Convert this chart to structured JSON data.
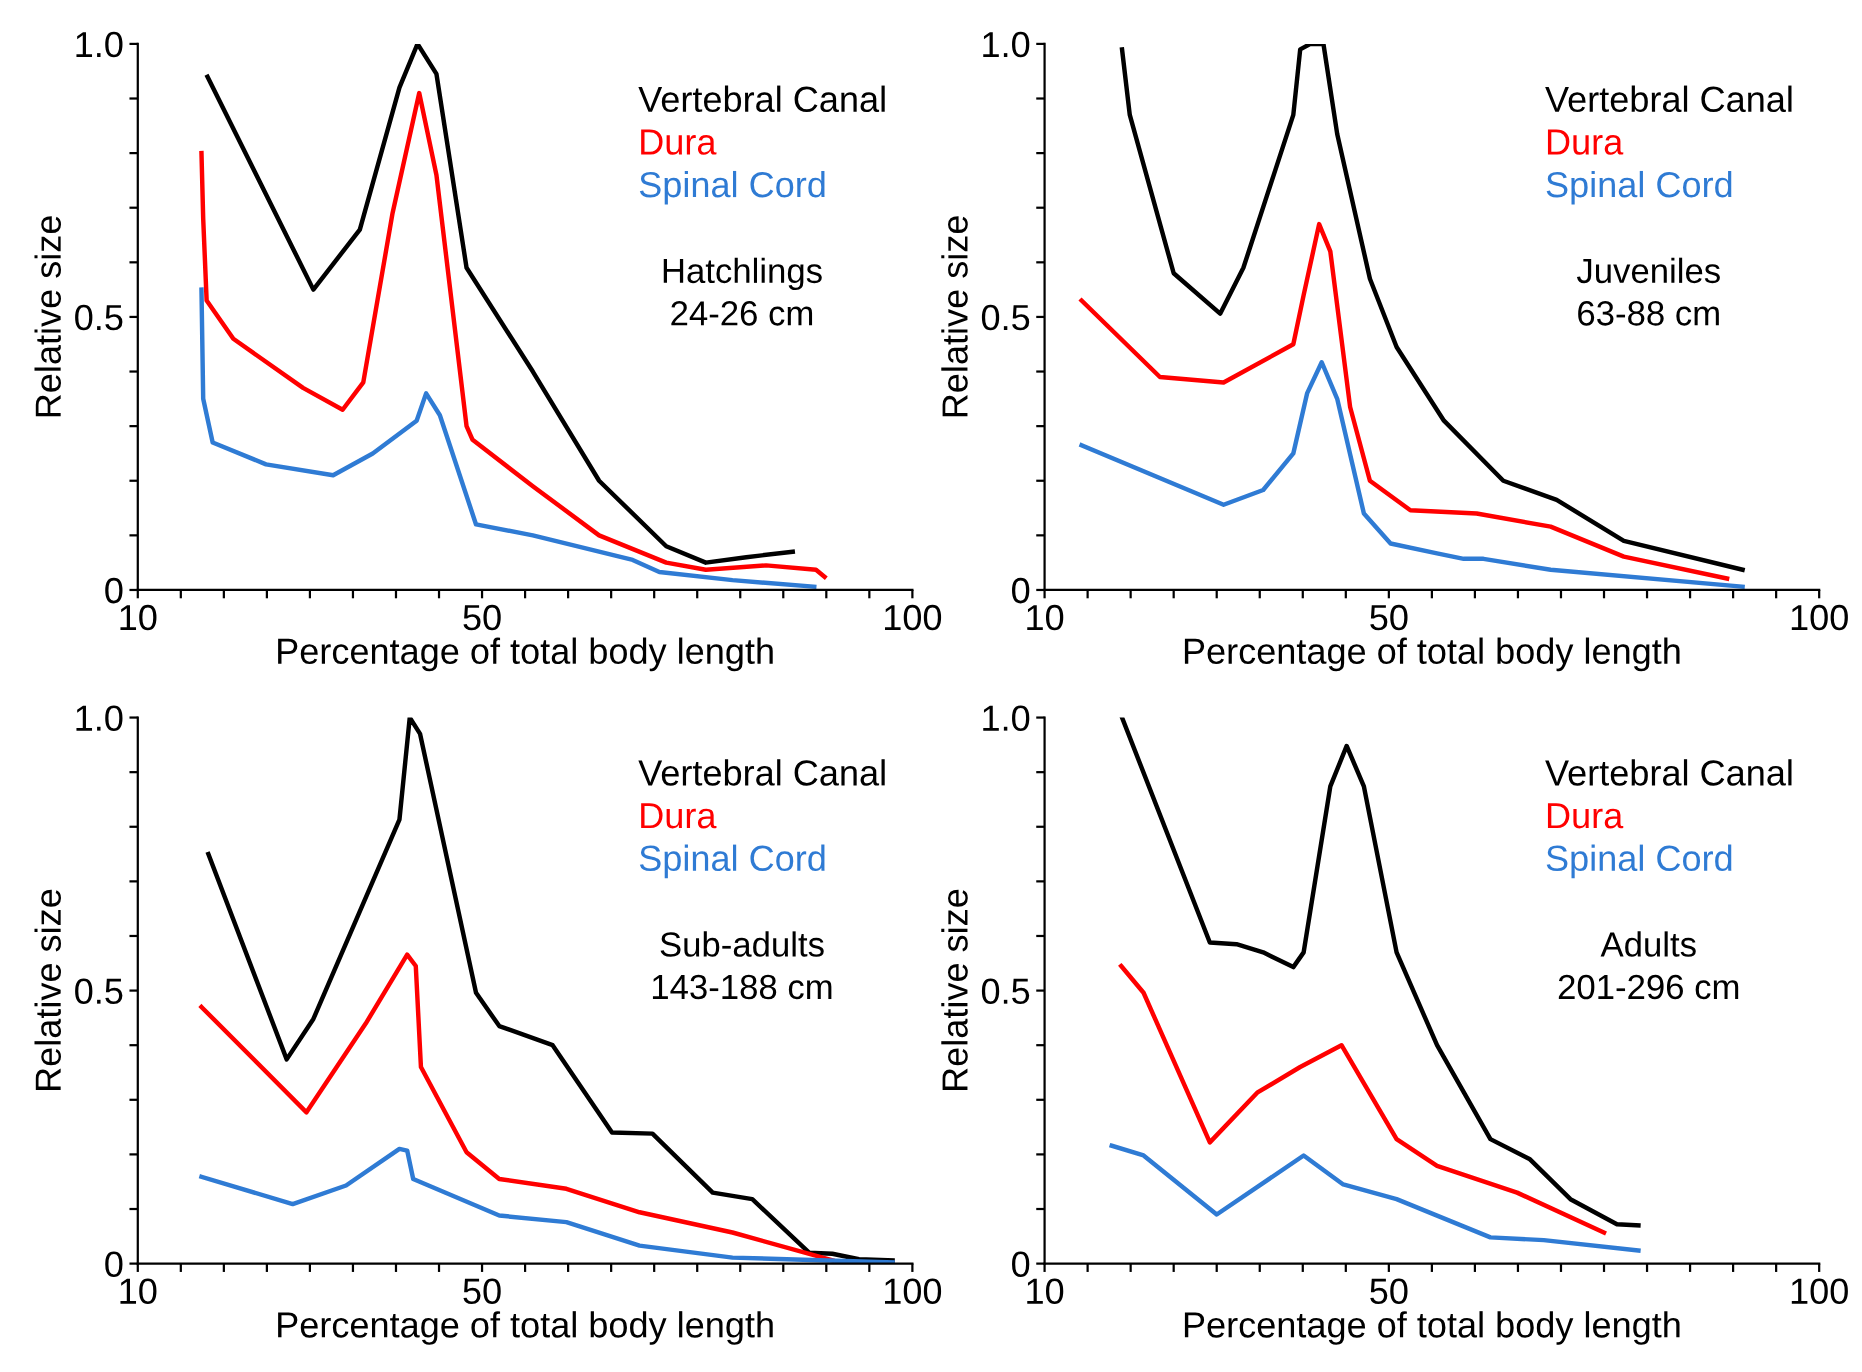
{
  "chart_data": [
    {
      "type": "line",
      "xlabel": "Percentage of total body length",
      "ylabel": "Relative size",
      "legend": "top right",
      "annotations": [
        "Hatchlings\n24-26 cm"
      ],
      "xlim": [
        10,
        100
      ],
      "ylim": [
        0,
        1.0
      ],
      "xticks": [
        10,
        {
          "value": 15,
          "label": null
        },
        {
          "value": 20,
          "label": null
        },
        {
          "value": 25,
          "label": null
        },
        {
          "value": 30,
          "label": null
        },
        {
          "value": 35,
          "label": null
        },
        {
          "value": 40,
          "label": null
        },
        {
          "value": 45,
          "label": null
        },
        50,
        {
          "value": 55,
          "label": null
        },
        {
          "value": 60,
          "label": null
        },
        {
          "value": 65,
          "label": null
        },
        {
          "value": 70,
          "label": null
        },
        {
          "value": 75,
          "label": null
        },
        {
          "value": 80,
          "label": null
        },
        {
          "value": 85,
          "label": null
        },
        {
          "value": 90,
          "label": null
        },
        {
          "value": 95,
          "label": null
        },
        100
      ],
      "yticks": [
        0,
        {
          "value": 0.1,
          "label": null
        },
        {
          "value": 0.2,
          "label": null
        },
        {
          "value": 0.3,
          "label": null
        },
        {
          "value": 0.4,
          "label": null
        },
        0.5,
        {
          "value": 0.6,
          "label": null
        },
        {
          "value": 0.7,
          "label": null
        },
        {
          "value": 0.8,
          "label": null
        },
        {
          "value": 0.9,
          "label": null
        },
        {
          "value": 1.0,
          "label": "1.0"
        }
      ],
      "series": [
        {
          "name": "Vertebral Canal",
          "color": "#000000",
          "x": [
            18.1,
            30.4,
            35.8,
            40.4,
            42.5,
            44.7,
            48.2,
            55.9,
            63.6,
            71.4,
            76,
            80.7,
            86.1
          ],
          "values": [
            0.94,
            0.55,
            0.66,
            0.92,
            1.0,
            0.945,
            0.59,
            0.4,
            0.2,
            0.08,
            0.05,
            0.06,
            0.07
          ]
        },
        {
          "name": "Dura",
          "color": "#ff0000",
          "x": [
            17.4,
            17.6,
            18.0,
            21.1,
            29.2,
            33.8,
            36.2,
            39.6,
            42.7,
            44.7,
            48.2,
            48.9,
            55.9,
            63.6,
            71.4,
            76,
            83,
            88.8,
            89.8
          ],
          "values": [
            0.8,
            0.68,
            0.53,
            0.46,
            0.37,
            0.33,
            0.38,
            0.69,
            0.91,
            0.76,
            0.3,
            0.275,
            0.19,
            0.1,
            0.05,
            0.037,
            0.045,
            0.037,
            0.024
          ]
        },
        {
          "name": "Spinal Cord",
          "color": "#2f7bd4",
          "x": [
            17.4,
            17.6,
            18.7,
            24.9,
            32.7,
            37.3,
            42.4,
            43.5,
            45.1,
            49.3,
            55.9,
            67.5,
            70.6,
            79.1,
            88.6
          ],
          "values": [
            0.55,
            0.35,
            0.27,
            0.23,
            0.21,
            0.25,
            0.31,
            0.36,
            0.32,
            0.12,
            0.1,
            0.055,
            0.033,
            0.018,
            0.006
          ]
        }
      ]
    },
    {
      "type": "line",
      "xlabel": "Percentage of total body length",
      "ylabel": "Relative size",
      "legend": "top right",
      "annotations": [
        "Juveniles\n63-88 cm"
      ],
      "xlim": [
        10,
        100
      ],
      "ylim": [
        0,
        1.0
      ],
      "xticks": [
        10,
        {
          "value": 15,
          "label": null
        },
        {
          "value": 20,
          "label": null
        },
        {
          "value": 25,
          "label": null
        },
        {
          "value": 30,
          "label": null
        },
        {
          "value": 35,
          "label": null
        },
        {
          "value": 40,
          "label": null
        },
        {
          "value": 45,
          "label": null
        },
        50,
        {
          "value": 55,
          "label": null
        },
        {
          "value": 60,
          "label": null
        },
        {
          "value": 65,
          "label": null
        },
        {
          "value": 70,
          "label": null
        },
        {
          "value": 75,
          "label": null
        },
        {
          "value": 80,
          "label": null
        },
        {
          "value": 85,
          "label": null
        },
        {
          "value": 90,
          "label": null
        },
        {
          "value": 95,
          "label": null
        },
        100
      ],
      "yticks": [
        0,
        {
          "value": 0.1,
          "label": null
        },
        {
          "value": 0.2,
          "label": null
        },
        {
          "value": 0.3,
          "label": null
        },
        {
          "value": 0.4,
          "label": null
        },
        0.5,
        {
          "value": 0.6,
          "label": null
        },
        {
          "value": 0.7,
          "label": null
        },
        {
          "value": 0.8,
          "label": null
        },
        {
          "value": 0.9,
          "label": null
        },
        {
          "value": 1.0,
          "label": "1.0"
        }
      ],
      "series": [
        {
          "name": "Vertebral Canal",
          "color": "#000000",
          "x": [
            19.0,
            19.9,
            25,
            30.4,
            33.1,
            38.9,
            39.7,
            40.9,
            42.4,
            44,
            47.8,
            50.9,
            56.4,
            63.3,
            69.5,
            77.3,
            91.1
          ],
          "values": [
            0.99,
            0.87,
            0.58,
            0.506,
            0.59,
            0.87,
            0.99,
            1.0,
            1.0,
            0.835,
            0.57,
            0.445,
            0.31,
            0.2,
            0.165,
            0.09,
            0.037
          ]
        },
        {
          "name": "Dura",
          "color": "#ff0000",
          "x": [
            14.3,
            23.4,
            30.8,
            38.9,
            40.1,
            41.9,
            43.2,
            45.5,
            47.8,
            52.5,
            60.2,
            68.8,
            77.3,
            89.3
          ],
          "values": [
            0.53,
            0.39,
            0.38,
            0.45,
            0.54,
            0.67,
            0.62,
            0.335,
            0.2,
            0.146,
            0.14,
            0.116,
            0.061,
            0.021
          ]
        },
        {
          "name": "Spinal Cord",
          "color": "#2f7bd4",
          "x": [
            14.3,
            30.8,
            35.4,
            38.9,
            40.5,
            42.2,
            44,
            47.1,
            50.2,
            55.6,
            58.7,
            61,
            68.8,
            91.1
          ],
          "values": [
            0.265,
            0.156,
            0.183,
            0.25,
            0.36,
            0.417,
            0.35,
            0.14,
            0.085,
            0.067,
            0.057,
            0.057,
            0.037,
            0.006
          ]
        }
      ]
    },
    {
      "type": "line",
      "xlabel": "Percentage of total body length",
      "ylabel": "Relative size",
      "legend": "top right",
      "annotations": [
        "Sub-adults\n143-188 cm"
      ],
      "xlim": [
        10,
        100
      ],
      "ylim": [
        0,
        1.0
      ],
      "xticks": [
        10,
        {
          "value": 15,
          "label": null
        },
        {
          "value": 20,
          "label": null
        },
        {
          "value": 25,
          "label": null
        },
        {
          "value": 30,
          "label": null
        },
        {
          "value": 35,
          "label": null
        },
        {
          "value": 40,
          "label": null
        },
        {
          "value": 45,
          "label": null
        },
        50,
        {
          "value": 55,
          "label": null
        },
        {
          "value": 60,
          "label": null
        },
        {
          "value": 65,
          "label": null
        },
        {
          "value": 70,
          "label": null
        },
        {
          "value": 75,
          "label": null
        },
        {
          "value": 80,
          "label": null
        },
        {
          "value": 85,
          "label": null
        },
        {
          "value": 90,
          "label": null
        },
        {
          "value": 95,
          "label": null
        },
        100
      ],
      "yticks": [
        0,
        {
          "value": 0.1,
          "label": null
        },
        {
          "value": 0.2,
          "label": null
        },
        {
          "value": 0.3,
          "label": null
        },
        {
          "value": 0.4,
          "label": null
        },
        0.5,
        {
          "value": 0.6,
          "label": null
        },
        {
          "value": 0.7,
          "label": null
        },
        {
          "value": 0.8,
          "label": null
        },
        {
          "value": 0.9,
          "label": null
        },
        {
          "value": 1.0,
          "label": "1.0"
        }
      ],
      "series": [
        {
          "name": "Vertebral Canal",
          "color": "#000000",
          "x": [
            18.2,
            27.3,
            30.4,
            40.4,
            41.6,
            42.8,
            49.3,
            52,
            58.2,
            65.1,
            69.8,
            76.8,
            81.4,
            88,
            90.7,
            93.8,
            97.7
          ],
          "values": [
            0.75,
            0.374,
            0.448,
            0.813,
            1.0,
            0.97,
            0.496,
            0.435,
            0.4,
            0.24,
            0.238,
            0.13,
            0.118,
            0.02,
            0.018,
            0.008,
            0.006
          ]
        },
        {
          "name": "Dura",
          "color": "#ff0000",
          "x": [
            17.4,
            29.6,
            36.5,
            41.3,
            42.3,
            42.9,
            48.2,
            52,
            59.8,
            68.3,
            79.1,
            90.7
          ],
          "values": [
            0.47,
            0.277,
            0.44,
            0.566,
            0.545,
            0.36,
            0.204,
            0.155,
            0.137,
            0.094,
            0.057,
            0.006
          ]
        },
        {
          "name": "Spinal Cord",
          "color": "#2f7bd4",
          "x": [
            17.4,
            28,
            34.2,
            40.4,
            41.3,
            42,
            52,
            59.8,
            68.3,
            79.1,
            97.7
          ],
          "values": [
            0.159,
            0.109,
            0.143,
            0.21,
            0.207,
            0.155,
            0.088,
            0.076,
            0.033,
            0.011,
            0.002
          ]
        }
      ]
    },
    {
      "type": "line",
      "xlabel": "Percentage of total body length",
      "ylabel": "Relative size",
      "legend": "top right",
      "annotations": [
        "Adults\n201-296 cm"
      ],
      "xlim": [
        10,
        100
      ],
      "ylim": [
        0,
        1.0
      ],
      "xticks": [
        10,
        {
          "value": 15,
          "label": null
        },
        {
          "value": 20,
          "label": null
        },
        {
          "value": 25,
          "label": null
        },
        {
          "value": 30,
          "label": null
        },
        {
          "value": 35,
          "label": null
        },
        {
          "value": 40,
          "label": null
        },
        {
          "value": 45,
          "label": null
        },
        50,
        {
          "value": 55,
          "label": null
        },
        {
          "value": 60,
          "label": null
        },
        {
          "value": 65,
          "label": null
        },
        {
          "value": 70,
          "label": null
        },
        {
          "value": 75,
          "label": null
        },
        {
          "value": 80,
          "label": null
        },
        {
          "value": 85,
          "label": null
        },
        {
          "value": 90,
          "label": null
        },
        {
          "value": 95,
          "label": null
        },
        100
      ],
      "yticks": [
        0,
        {
          "value": 0.1,
          "label": null
        },
        {
          "value": 0.2,
          "label": null
        },
        {
          "value": 0.3,
          "label": null
        },
        {
          "value": 0.4,
          "label": null
        },
        0.5,
        {
          "value": 0.6,
          "label": null
        },
        {
          "value": 0.7,
          "label": null
        },
        {
          "value": 0.8,
          "label": null
        },
        {
          "value": 0.9,
          "label": null
        },
        {
          "value": 1.0,
          "label": "1.0"
        }
      ],
      "series": [
        {
          "name": "Vertebral Canal",
          "color": "#000000",
          "x": [
            19,
            29.2,
            32.3,
            35.4,
            38.9,
            40.1,
            43.2,
            45.1,
            47.1,
            50.9,
            55.6,
            61.8,
            66.4,
            71.1,
            76.5,
            79
          ],
          "values": [
            1.0,
            0.588,
            0.585,
            0.57,
            0.543,
            0.57,
            0.874,
            0.948,
            0.874,
            0.57,
            0.4,
            0.228,
            0.191,
            0.118,
            0.072,
            0.07
          ]
        },
        {
          "name": "Dura",
          "color": "#ff0000",
          "x": [
            18.9,
            21.5,
            29.2,
            34.7,
            39.7,
            44.5,
            50.9,
            55.6,
            64.9,
            75
          ],
          "values": [
            0.545,
            0.496,
            0.222,
            0.313,
            0.36,
            0.4,
            0.228,
            0.179,
            0.13,
            0.057
          ]
        },
        {
          "name": "Spinal Cord",
          "color": "#2f7bd4",
          "x": [
            17.8,
            21.5,
            30,
            40.1,
            44.7,
            50.9,
            61.8,
            68,
            79
          ],
          "values": [
            0.216,
            0.198,
            0.09,
            0.198,
            0.145,
            0.118,
            0.048,
            0.043,
            0.024
          ]
        }
      ]
    }
  ]
}
